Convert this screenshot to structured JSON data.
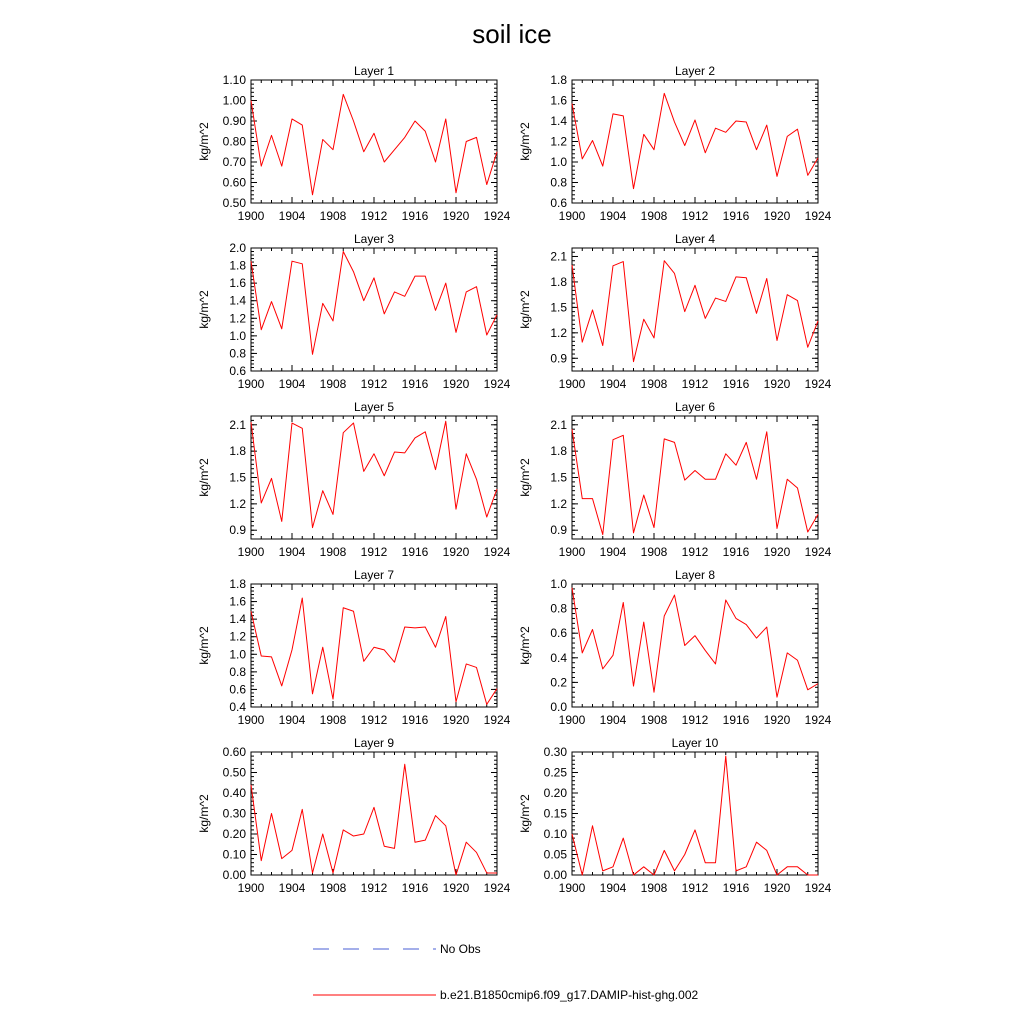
{
  "title": "soil ice",
  "legend": [
    {
      "label": "No Obs",
      "color": "#4a5fd6",
      "style": "dashed"
    },
    {
      "label": "b.e21.B1850cmip6.f09_g17.DAMIP-hist-ghg.002",
      "color": "#ff0000",
      "style": "solid"
    }
  ],
  "colors": {
    "series": "#ff0000",
    "obs": "#4a5fd6",
    "axis": "#000000"
  },
  "chart_data": [
    {
      "type": "line",
      "title": "Layer 1",
      "ylabel": "kg/m^2",
      "xlim": [
        1900,
        1924
      ],
      "xticks": [
        1900,
        1904,
        1908,
        1912,
        1916,
        1920,
        1924
      ],
      "ylim": [
        0.5,
        1.1
      ],
      "yticks": [
        0.5,
        0.6,
        0.7,
        0.8,
        0.9,
        1.0,
        1.1
      ],
      "ytick_labels": [
        "0.50",
        "0.60",
        "0.70",
        "0.80",
        "0.90",
        "1.00",
        "1.10"
      ],
      "ytick_minor": 0.02,
      "series": [
        {
          "x": [
            1900,
            1901,
            1902,
            1903,
            1904,
            1905,
            1906,
            1907,
            1908,
            1909,
            1910,
            1911,
            1912,
            1913,
            1914,
            1915,
            1916,
            1917,
            1918,
            1919,
            1920,
            1921,
            1922,
            1923,
            1924
          ],
          "values": [
            1.0,
            0.68,
            0.83,
            0.68,
            0.91,
            0.88,
            0.54,
            0.81,
            0.76,
            1.03,
            0.9,
            0.75,
            0.84,
            0.7,
            0.76,
            0.82,
            0.9,
            0.85,
            0.7,
            0.91,
            0.55,
            0.8,
            0.82,
            0.59,
            0.75
          ]
        }
      ]
    },
    {
      "type": "line",
      "title": "Layer 2",
      "ylabel": "kg/m^2",
      "xlim": [
        1900,
        1924
      ],
      "xticks": [
        1900,
        1904,
        1908,
        1912,
        1916,
        1920,
        1924
      ],
      "ylim": [
        0.6,
        1.8
      ],
      "yticks": [
        0.6,
        0.8,
        1.0,
        1.2,
        1.4,
        1.6,
        1.8
      ],
      "ytick_labels": [
        "0.6",
        "0.8",
        "1.0",
        "1.2",
        "1.4",
        "1.6",
        "1.8"
      ],
      "ytick_minor": 0.04,
      "series": [
        {
          "x": [
            1900,
            1901,
            1902,
            1903,
            1904,
            1905,
            1906,
            1907,
            1908,
            1909,
            1910,
            1911,
            1912,
            1913,
            1914,
            1915,
            1916,
            1917,
            1918,
            1919,
            1920,
            1921,
            1922,
            1923,
            1924
          ],
          "values": [
            1.57,
            1.03,
            1.21,
            0.96,
            1.47,
            1.45,
            0.74,
            1.27,
            1.12,
            1.67,
            1.39,
            1.16,
            1.41,
            1.09,
            1.33,
            1.29,
            1.4,
            1.39,
            1.12,
            1.36,
            0.86,
            1.25,
            1.32,
            0.87,
            1.04
          ]
        }
      ]
    },
    {
      "type": "line",
      "title": "Layer 3",
      "ylabel": "kg/m^2",
      "xlim": [
        1900,
        1924
      ],
      "xticks": [
        1900,
        1904,
        1908,
        1912,
        1916,
        1920,
        1924
      ],
      "ylim": [
        0.6,
        2.0
      ],
      "yticks": [
        0.6,
        0.8,
        1.0,
        1.2,
        1.4,
        1.6,
        1.8,
        2.0
      ],
      "ytick_labels": [
        "0.6",
        "0.8",
        "1.0",
        "1.2",
        "1.4",
        "1.6",
        "1.8",
        "2.0"
      ],
      "ytick_minor": 0.04,
      "series": [
        {
          "x": [
            1900,
            1901,
            1902,
            1903,
            1904,
            1905,
            1906,
            1907,
            1908,
            1909,
            1910,
            1911,
            1912,
            1913,
            1914,
            1915,
            1916,
            1917,
            1918,
            1919,
            1920,
            1921,
            1922,
            1923,
            1924
          ],
          "values": [
            1.85,
            1.07,
            1.39,
            1.08,
            1.85,
            1.82,
            0.79,
            1.37,
            1.17,
            1.96,
            1.73,
            1.4,
            1.66,
            1.25,
            1.5,
            1.45,
            1.68,
            1.68,
            1.29,
            1.6,
            1.04,
            1.5,
            1.56,
            1.01,
            1.24
          ]
        }
      ]
    },
    {
      "type": "line",
      "title": "Layer 4",
      "ylabel": "kg/m^2",
      "xlim": [
        1900,
        1924
      ],
      "xticks": [
        1900,
        1904,
        1908,
        1912,
        1916,
        1920,
        1924
      ],
      "ylim": [
        0.75,
        2.2
      ],
      "yticks": [
        0.9,
        1.2,
        1.5,
        1.8,
        2.1
      ],
      "ytick_labels": [
        "0.9",
        "1.2",
        "1.5",
        "1.8",
        "2.1"
      ],
      "ytick_minor": 0.05,
      "series": [
        {
          "x": [
            1900,
            1901,
            1902,
            1903,
            1904,
            1905,
            1906,
            1907,
            1908,
            1909,
            1910,
            1911,
            1912,
            1913,
            1914,
            1915,
            1916,
            1917,
            1918,
            1919,
            1920,
            1921,
            1922,
            1923,
            1924
          ],
          "values": [
            2.0,
            1.09,
            1.47,
            1.05,
            1.99,
            2.04,
            0.86,
            1.36,
            1.14,
            2.05,
            1.9,
            1.45,
            1.76,
            1.37,
            1.61,
            1.57,
            1.86,
            1.85,
            1.43,
            1.84,
            1.11,
            1.65,
            1.58,
            1.03,
            1.34
          ]
        }
      ]
    },
    {
      "type": "line",
      "title": "Layer 5",
      "ylabel": "kg/m^2",
      "xlim": [
        1900,
        1924
      ],
      "xticks": [
        1900,
        1904,
        1908,
        1912,
        1916,
        1920,
        1924
      ],
      "ylim": [
        0.8,
        2.2
      ],
      "yticks": [
        0.9,
        1.2,
        1.5,
        1.8,
        2.1
      ],
      "ytick_labels": [
        "0.9",
        "1.2",
        "1.5",
        "1.8",
        "2.1"
      ],
      "ytick_minor": 0.05,
      "series": [
        {
          "x": [
            1900,
            1901,
            1902,
            1903,
            1904,
            1905,
            1906,
            1907,
            1908,
            1909,
            1910,
            1911,
            1912,
            1913,
            1914,
            1915,
            1916,
            1917,
            1918,
            1919,
            1920,
            1921,
            1922,
            1923,
            1924
          ],
          "values": [
            2.13,
            1.21,
            1.49,
            1.0,
            2.12,
            2.06,
            0.93,
            1.35,
            1.08,
            2.01,
            2.12,
            1.57,
            1.77,
            1.52,
            1.79,
            1.78,
            1.95,
            2.02,
            1.59,
            2.14,
            1.14,
            1.77,
            1.48,
            1.05,
            1.37
          ]
        }
      ]
    },
    {
      "type": "line",
      "title": "Layer 6",
      "ylabel": "kg/m^2",
      "xlim": [
        1900,
        1924
      ],
      "xticks": [
        1900,
        1904,
        1908,
        1912,
        1916,
        1920,
        1924
      ],
      "ylim": [
        0.8,
        2.2
      ],
      "yticks": [
        0.9,
        1.2,
        1.5,
        1.8,
        2.1
      ],
      "ytick_labels": [
        "0.9",
        "1.2",
        "1.5",
        "1.8",
        "2.1"
      ],
      "ytick_minor": 0.05,
      "series": [
        {
          "x": [
            1900,
            1901,
            1902,
            1903,
            1904,
            1905,
            1906,
            1907,
            1908,
            1909,
            1910,
            1911,
            1912,
            1913,
            1914,
            1915,
            1916,
            1917,
            1918,
            1919,
            1920,
            1921,
            1922,
            1923,
            1924
          ],
          "values": [
            2.05,
            1.26,
            1.26,
            0.85,
            1.93,
            1.98,
            0.87,
            1.3,
            0.93,
            1.94,
            1.9,
            1.47,
            1.58,
            1.48,
            1.48,
            1.77,
            1.64,
            1.9,
            1.48,
            2.02,
            0.92,
            1.48,
            1.38,
            0.88,
            1.08
          ]
        }
      ]
    },
    {
      "type": "line",
      "title": "Layer 7",
      "ylabel": "kg/m^2",
      "xlim": [
        1900,
        1924
      ],
      "xticks": [
        1900,
        1904,
        1908,
        1912,
        1916,
        1920,
        1924
      ],
      "ylim": [
        0.4,
        1.8
      ],
      "yticks": [
        0.4,
        0.6,
        0.8,
        1.0,
        1.2,
        1.4,
        1.6,
        1.8
      ],
      "ytick_labels": [
        "0.4",
        "0.6",
        "0.8",
        "1.0",
        "1.2",
        "1.4",
        "1.6",
        "1.8"
      ],
      "ytick_minor": 0.04,
      "series": [
        {
          "x": [
            1900,
            1901,
            1902,
            1903,
            1904,
            1905,
            1906,
            1907,
            1908,
            1909,
            1910,
            1911,
            1912,
            1913,
            1914,
            1915,
            1916,
            1917,
            1918,
            1919,
            1920,
            1921,
            1922,
            1923,
            1924
          ],
          "values": [
            1.49,
            0.98,
            0.97,
            0.64,
            1.05,
            1.64,
            0.55,
            1.08,
            0.49,
            1.53,
            1.49,
            0.92,
            1.08,
            1.05,
            0.91,
            1.31,
            1.3,
            1.31,
            1.08,
            1.43,
            0.46,
            0.89,
            0.85,
            0.43,
            0.61
          ]
        }
      ]
    },
    {
      "type": "line",
      "title": "Layer 8",
      "ylabel": "kg/m^2",
      "xlim": [
        1900,
        1924
      ],
      "xticks": [
        1900,
        1904,
        1908,
        1912,
        1916,
        1920,
        1924
      ],
      "ylim": [
        0.0,
        1.0
      ],
      "yticks": [
        0.0,
        0.2,
        0.4,
        0.6,
        0.8,
        1.0
      ],
      "ytick_labels": [
        "0.0",
        "0.2",
        "0.4",
        "0.6",
        "0.8",
        "1.0"
      ],
      "ytick_minor": 0.04,
      "series": [
        {
          "x": [
            1900,
            1901,
            1902,
            1903,
            1904,
            1905,
            1906,
            1907,
            1908,
            1909,
            1910,
            1911,
            1912,
            1913,
            1914,
            1915,
            1916,
            1917,
            1918,
            1919,
            1920,
            1921,
            1922,
            1923,
            1924
          ],
          "values": [
            0.97,
            0.44,
            0.63,
            0.31,
            0.42,
            0.85,
            0.17,
            0.69,
            0.12,
            0.74,
            0.91,
            0.5,
            0.58,
            0.46,
            0.35,
            0.87,
            0.72,
            0.67,
            0.56,
            0.65,
            0.08,
            0.44,
            0.38,
            0.14,
            0.19
          ]
        }
      ]
    },
    {
      "type": "line",
      "title": "Layer 9",
      "ylabel": "kg/m^2",
      "xlim": [
        1900,
        1924
      ],
      "xticks": [
        1900,
        1904,
        1908,
        1912,
        1916,
        1920,
        1924
      ],
      "ylim": [
        0.0,
        0.6
      ],
      "yticks": [
        0.0,
        0.1,
        0.2,
        0.3,
        0.4,
        0.5,
        0.6
      ],
      "ytick_labels": [
        "0.00",
        "0.10",
        "0.20",
        "0.30",
        "0.40",
        "0.50",
        "0.60"
      ],
      "ytick_minor": 0.02,
      "series": [
        {
          "x": [
            1900,
            1901,
            1902,
            1903,
            1904,
            1905,
            1906,
            1907,
            1908,
            1909,
            1910,
            1911,
            1912,
            1913,
            1914,
            1915,
            1916,
            1917,
            1918,
            1919,
            1920,
            1921,
            1922,
            1923,
            1924
          ],
          "values": [
            0.44,
            0.07,
            0.3,
            0.08,
            0.12,
            0.32,
            0.01,
            0.2,
            0.01,
            0.22,
            0.19,
            0.2,
            0.33,
            0.14,
            0.13,
            0.54,
            0.16,
            0.17,
            0.29,
            0.24,
            0.0,
            0.16,
            0.11,
            0.01,
            0.01
          ]
        }
      ]
    },
    {
      "type": "line",
      "title": "Layer 10",
      "ylabel": "kg/m^2",
      "xlim": [
        1900,
        1924
      ],
      "xticks": [
        1900,
        1904,
        1908,
        1912,
        1916,
        1920,
        1924
      ],
      "ylim": [
        0.0,
        0.3
      ],
      "yticks": [
        0.0,
        0.05,
        0.1,
        0.15,
        0.2,
        0.25,
        0.3
      ],
      "ytick_labels": [
        "0.00",
        "0.05",
        "0.10",
        "0.15",
        "0.20",
        "0.25",
        "0.30"
      ],
      "ytick_minor": 0.01,
      "series": [
        {
          "x": [
            1900,
            1901,
            1902,
            1903,
            1904,
            1905,
            1906,
            1907,
            1908,
            1909,
            1910,
            1911,
            1912,
            1913,
            1914,
            1915,
            1916,
            1917,
            1918,
            1919,
            1920,
            1921,
            1922,
            1923,
            1924
          ],
          "values": [
            0.1,
            0.0,
            0.12,
            0.01,
            0.02,
            0.09,
            0.0,
            0.02,
            0.0,
            0.06,
            0.01,
            0.05,
            0.11,
            0.03,
            0.03,
            0.29,
            0.01,
            0.02,
            0.08,
            0.06,
            0.0,
            0.02,
            0.02,
            0.0,
            0.0
          ]
        }
      ]
    }
  ]
}
